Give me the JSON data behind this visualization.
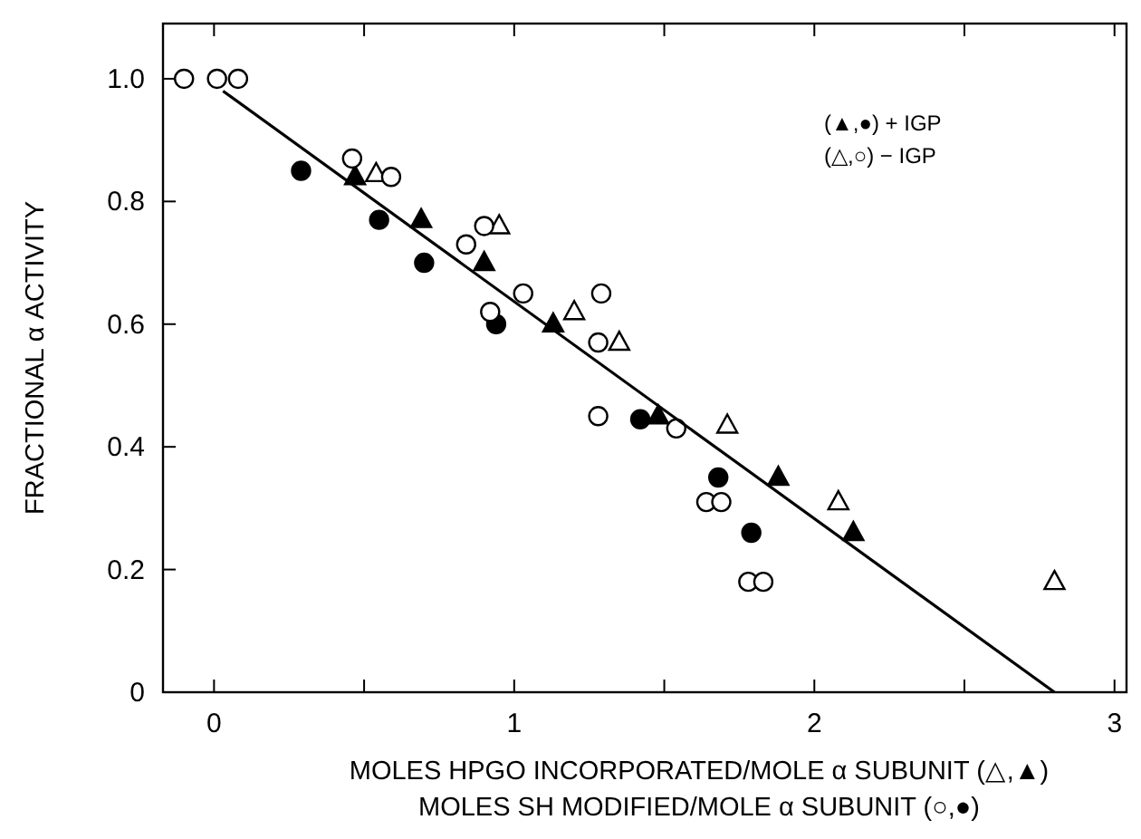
{
  "chart_data": {
    "type": "scatter",
    "xlabel": "MOLES HPGO INCORPORATED/MOLE α SUBUNIT (△,▲)\nMOLES SH MODIFIED/MOLE α SUBUNIT (○,●)",
    "ylabel": "FRACTIONAL α ACTIVITY",
    "xlim": [
      -0.17,
      3.04
    ],
    "ylim": [
      0,
      1.09
    ],
    "xticks": [
      0,
      {
        "value": 0.5,
        "label": null
      },
      1,
      {
        "value": 1.5,
        "label": null
      },
      2,
      {
        "value": 2.5,
        "label": null
      },
      3
    ],
    "yticks": [
      0,
      0.2,
      0.4,
      0.6,
      0.8,
      {
        "value": 1,
        "label": "1.0"
      }
    ],
    "annotations": [
      "(▲,●) + IGP",
      "(△,○) − IGP"
    ],
    "series": [
      {
        "marker": "triangle",
        "color": "#000000",
        "x": [
          0.47,
          0.69,
          0.9,
          1.13,
          1.48,
          1.88,
          2.13
        ],
        "values": [
          0.84,
          0.77,
          0.7,
          0.6,
          0.45,
          0.35,
          0.26
        ]
      },
      {
        "marker": "circle",
        "color": "#000000",
        "x": [
          0.29,
          0.55,
          0.7,
          0.94,
          1.42,
          1.68,
          1.79
        ],
        "values": [
          0.85,
          0.77,
          0.7,
          0.6,
          0.445,
          0.35,
          0.26
        ]
      },
      {
        "marker": "triangle",
        "color": "#ffffff",
        "x": [
          0.54,
          0.95,
          1.2,
          1.35,
          1.71,
          2.08,
          2.8
        ],
        "values": [
          0.845,
          0.76,
          0.62,
          0.57,
          0.435,
          0.31,
          0.18
        ]
      },
      {
        "marker": "circle",
        "color": "#ffffff",
        "x": [
          -0.1,
          0.01,
          0.08,
          0.46,
          0.59,
          0.84,
          0.9,
          1.03,
          0.92,
          1.29,
          1.28,
          1.28,
          1.54,
          1.64,
          1.69,
          1.78,
          1.83
        ],
        "values": [
          1.0,
          1.0,
          1.0,
          0.87,
          0.84,
          0.73,
          0.76,
          0.65,
          0.62,
          0.65,
          0.57,
          0.45,
          0.43,
          0.31,
          0.31,
          0.18,
          0.18
        ]
      },
      {
        "type": "line",
        "color": "#000000",
        "x": [
          0.03,
          2.8
        ],
        "values": [
          0.98,
          0
        ]
      }
    ]
  }
}
